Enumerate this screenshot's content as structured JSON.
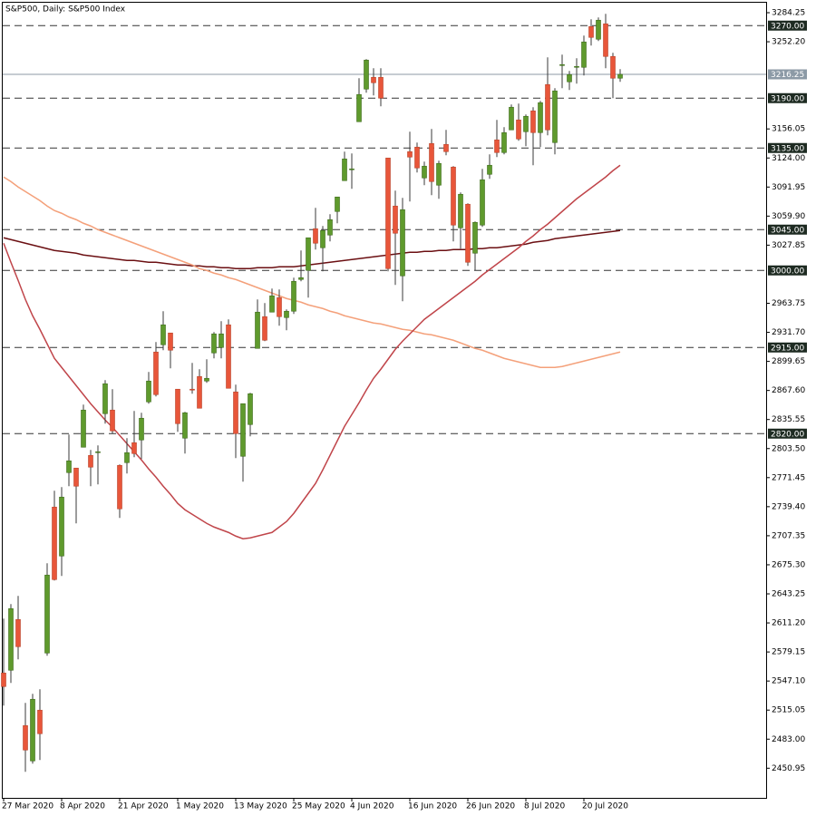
{
  "chart_data": {
    "type": "candlestick",
    "title": "S&P500, Daily:  S&P500 Index",
    "categories": [
      "27 Mar 2020",
      null,
      null,
      null,
      null,
      null,
      null,
      null,
      "8 Apr 2020",
      null,
      null,
      null,
      null,
      null,
      null,
      null,
      "21 Apr 2020",
      null,
      null,
      null,
      null,
      null,
      null,
      null,
      "1 May 2020",
      null,
      null,
      null,
      null,
      null,
      null,
      null,
      "13 May 2020",
      null,
      null,
      null,
      null,
      null,
      null,
      null,
      "25 May 2020",
      null,
      null,
      null,
      null,
      null,
      null,
      null,
      "4 Jun 2020",
      null,
      null,
      null,
      null,
      null,
      null,
      null,
      "16 Jun 2020",
      null,
      null,
      null,
      null,
      null,
      null,
      null,
      "26 Jun 2020",
      null,
      null,
      null,
      null,
      null,
      null,
      null,
      "8 Jul 2020",
      null,
      null,
      null,
      null,
      null,
      null,
      null,
      "20 Jul 2020",
      null,
      null,
      null,
      null,
      null
    ],
    "open": [
      2556,
      2559,
      2615,
      2498,
      2459,
      2515,
      2578,
      2739,
      2685,
      2777,
      2782,
      2805,
      2796,
      2799,
      2842,
      2846,
      2785,
      2788,
      2810,
      2813,
      2855,
      2910,
      2918,
      2931,
      2869,
      2815,
      2869,
      2883,
      2878,
      2909,
      2915,
      2940,
      2866,
      2795,
      2830,
      2914,
      2949,
      2954,
      2970,
      2948,
      2955,
      2990,
      3000,
      3046,
      3025,
      3039,
      3065,
      3099,
      3112,
      3164,
      3200,
      3213,
      3213,
      3124,
      3071,
      2994,
      3131,
      3136,
      3102,
      3140,
      3094,
      3139,
      3114,
      3047,
      3073,
      3019,
      3050,
      3106,
      3144,
      3130,
      3155,
      3166,
      3153,
      3176,
      3152,
      3205,
      3141,
      3226,
      3208,
      3224,
      3224,
      3269,
      3255,
      3272,
      3236,
      3212
    ],
    "high": [
      2616,
      2632,
      2641,
      2523,
      2533,
      2538,
      2677,
      2757,
      2761,
      2819,
      2782,
      2852,
      2802,
      2807,
      2879,
      2869,
      2786,
      2815,
      2845,
      2843,
      2888,
      2921,
      2955,
      2931,
      2869,
      2844,
      2898,
      2891,
      2902,
      2932,
      2944,
      2946,
      2874,
      2853,
      2865,
      2968,
      2964,
      2980,
      2979,
      2957,
      2992,
      3022,
      3036,
      3069,
      3049,
      3062,
      3081,
      3131,
      3129,
      3212,
      3233,
      3223,
      3223,
      3124,
      3088,
      3080,
      3153,
      3141,
      3120,
      3156,
      3121,
      3155,
      3115,
      3086,
      3074,
      3054,
      3112,
      3128,
      3166,
      3158,
      3183,
      3184,
      3172,
      3180,
      3187,
      3235,
      3201,
      3238,
      3220,
      3234,
      3259,
      3277,
      3279,
      3283,
      3240,
      3222
    ],
    "low": [
      2520,
      2545,
      2571,
      2447,
      2456,
      2460,
      2575,
      2658,
      2663,
      2762,
      2721,
      2805,
      2762,
      2764,
      2831,
      2820,
      2727,
      2776,
      2794,
      2792,
      2853,
      2861,
      2912,
      2892,
      2822,
      2798,
      2864,
      2848,
      2876,
      2903,
      2903,
      2870,
      2793,
      2767,
      2817,
      2914,
      2922,
      2954,
      2939,
      2934,
      2952,
      2988,
      2970,
      3023,
      2999,
      3032,
      3052,
      3099,
      3090,
      3164,
      3196,
      3193,
      3181,
      2999,
      2984,
      2966,
      3076,
      3108,
      3094,
      3083,
      3079,
      3127,
      3032,
      3024,
      3005,
      3000,
      3048,
      3101,
      3125,
      3128,
      3155,
      3143,
      3137,
      3116,
      3136,
      3149,
      3128,
      3201,
      3199,
      3206,
      3215,
      3248,
      3253,
      3223,
      3190,
      3208
    ],
    "close": [
      2541,
      2627,
      2585,
      2471,
      2527,
      2489,
      2664,
      2659,
      2750,
      2790,
      2762,
      2846,
      2783,
      2800,
      2875,
      2823,
      2737,
      2799,
      2798,
      2837,
      2878,
      2863,
      2940,
      2912,
      2831,
      2843,
      2868,
      2848,
      2881,
      2930,
      2930,
      2870,
      2820,
      2853,
      2864,
      2954,
      2923,
      2972,
      2949,
      2955,
      2988,
      2992,
      3036,
      3030,
      3044,
      3056,
      3081,
      3123,
      3112,
      3194,
      3232,
      3207,
      3190,
      3002,
      3041,
      3067,
      3125,
      3113,
      3115,
      3098,
      3118,
      3131,
      3050,
      3084,
      3009,
      3053,
      3100,
      3116,
      3130,
      3152,
      3180,
      3145,
      3170,
      3152,
      3185,
      3155,
      3198,
      3227,
      3216,
      3225,
      3252,
      3257,
      3276,
      3236,
      3212,
      3216.25
    ],
    "up_color": "#5f9a2d",
    "down_color": "#e8563a",
    "ylim": [
      2418.25,
      3296.25
    ],
    "yticks": [
      3284.25,
      {
        "value": 3252.2,
        "label": "3252.20"
      },
      3156.05,
      {
        "value": 3124,
        "label": "3124.00"
      },
      3091.95,
      {
        "value": 3059.9,
        "label": "3059.90"
      },
      3027.85,
      2963.75,
      {
        "value": 2931.7,
        "label": "2931.70"
      },
      2899.65,
      {
        "value": 2867.6,
        "label": "2867.60"
      },
      2835.55,
      {
        "value": 2803.5,
        "label": "2803.50"
      },
      2771.45,
      {
        "value": 2739.4,
        "label": "2739.40"
      },
      2707.35,
      {
        "value": 2675.3,
        "label": "2675.30"
      },
      2643.25,
      {
        "value": 2611.2,
        "label": "2611.20"
      },
      2579.15,
      {
        "value": 2547.1,
        "label": "2547.10"
      },
      2515.05,
      {
        "value": 2483,
        "label": "2483.00"
      },
      2450.95
    ],
    "levels": [
      {
        "value": 3270,
        "label": "3270.00"
      },
      {
        "value": 3190,
        "label": "3190.00"
      },
      {
        "value": 3135,
        "label": "3135.00"
      },
      {
        "value": 3045,
        "label": "3045.00"
      },
      {
        "value": 3000,
        "label": "3000.00"
      },
      {
        "value": 2915,
        "label": "2915.00"
      },
      {
        "value": 2820,
        "label": "2820.00"
      }
    ],
    "level_color": "#1e2b22",
    "current_price": 3216.25,
    "current_price_color": "#8c9aa6",
    "overlays": [
      {
        "color": "#6b0f12",
        "values": [
          3036,
          3034,
          3032,
          3030,
          3028,
          3026,
          3024,
          3022,
          3021,
          3020,
          3019,
          3017,
          3016,
          3015,
          3014,
          3013,
          3012,
          3011,
          3011,
          3010,
          3009,
          3009,
          3008,
          3007,
          3006,
          3006,
          3005,
          3005,
          3004,
          3004,
          3003,
          3003,
          3002,
          3002,
          3002,
          3003,
          3003,
          3003,
          3004,
          3004,
          3004,
          3005,
          3006,
          3007,
          3008,
          3009,
          3010,
          3011,
          3012,
          3013,
          3014,
          3015,
          3016,
          3017,
          3018,
          3019,
          3020,
          3020,
          3021,
          3021,
          3022,
          3022,
          3023,
          3023,
          3023,
          3024,
          3024,
          3025,
          3025,
          3026,
          3027,
          3028,
          3029,
          3031,
          3032,
          3033,
          3035,
          3036,
          3037,
          3038,
          3039,
          3040,
          3041,
          3042,
          3043,
          3044
        ]
      },
      {
        "color": "#f4a07a",
        "values": [
          3103,
          3098,
          3092,
          3087,
          3082,
          3077,
          3071,
          3066,
          3063,
          3059,
          3056,
          3052,
          3049,
          3045,
          3042,
          3039,
          3036,
          3033,
          3030,
          3027,
          3024,
          3021,
          3018,
          3015,
          3012,
          3009,
          3006,
          3002,
          3000,
          2997,
          2995,
          2992,
          2990,
          2987,
          2984,
          2981,
          2978,
          2975,
          2972,
          2969,
          2967,
          2965,
          2962,
          2960,
          2958,
          2955,
          2953,
          2950,
          2948,
          2946,
          2944,
          2942,
          2941,
          2939,
          2937,
          2935,
          2934,
          2932,
          2930,
          2929,
          2927,
          2925,
          2923,
          2920,
          2917,
          2914,
          2912,
          2909,
          2906,
          2903,
          2901,
          2899,
          2897,
          2895,
          2893,
          2893,
          2893,
          2894,
          2896,
          2898,
          2900,
          2902,
          2904,
          2906,
          2908,
          2910
        ]
      },
      {
        "color": "#c0454a",
        "values": [
          3030,
          3009,
          2989,
          2968,
          2950,
          2935,
          2919,
          2903,
          2893,
          2883,
          2873,
          2863,
          2853,
          2844,
          2835,
          2827,
          2818,
          2809,
          2800,
          2791,
          2781,
          2772,
          2762,
          2753,
          2743,
          2736,
          2731,
          2726,
          2721,
          2717,
          2714,
          2711,
          2707,
          2704,
          2705,
          2707,
          2709,
          2711,
          2717,
          2723,
          2732,
          2743,
          2754,
          2765,
          2780,
          2796,
          2812,
          2828,
          2841,
          2854,
          2868,
          2881,
          2891,
          2902,
          2913,
          2922,
          2930,
          2938,
          2946,
          2952,
          2958,
          2964,
          2970,
          2976,
          2982,
          2988,
          2995,
          3001,
          3007,
          3013,
          3019,
          3025,
          3032,
          3038,
          3045,
          3051,
          3058,
          3065,
          3072,
          3079,
          3085,
          3091,
          3097,
          3103,
          3110,
          3116
        ]
      }
    ]
  }
}
